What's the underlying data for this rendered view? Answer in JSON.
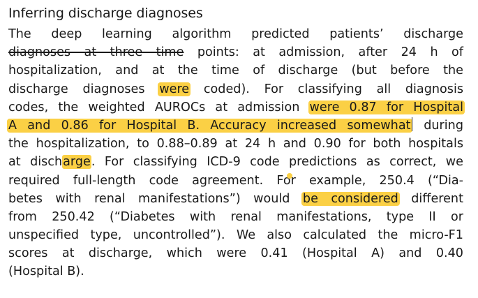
{
  "document": {
    "heading": "Inferring discharge diagnoses",
    "colors": {
      "highlight": "#fbd045",
      "text": "#1a1a1a"
    },
    "lines": [
      {
        "parts": [
          {
            "t": "The deep learning algorithm predicted patients’ discharge"
          }
        ]
      },
      {
        "parts": [
          {
            "t": "diagnoses at three time",
            "strike": true
          },
          {
            "t": " points: at admission, after 24 h of"
          }
        ]
      },
      {
        "parts": [
          {
            "t": "hospitalization, and at the time of discharge (but before the"
          }
        ]
      },
      {
        "parts": [
          {
            "t": "discharge diagnoses "
          },
          {
            "t": "were",
            "hl": true
          },
          {
            "t": " coded). For classifying all diagnosis"
          }
        ]
      },
      {
        "parts": [
          {
            "t": "codes, the weighted AUROCs at admission "
          },
          {
            "t": "were 0.87 for Hospital",
            "hl": true
          }
        ]
      },
      {
        "parts": [
          {
            "t": "A and 0.86 for Hospital B. Accuracy increased somewhat",
            "hl": true
          },
          {
            "t": "",
            "cursor": true
          },
          {
            "t": " during"
          }
        ]
      },
      {
        "parts": [
          {
            "t": "the hospitalization, to 0.88–0.89 at 24 h and 0.90 for both hospitals"
          }
        ]
      },
      {
        "parts": [
          {
            "t": "at disch"
          },
          {
            "t": "arge",
            "hlf": true
          },
          {
            "t": ". For classifying ICD-9 code predictions as correct, we"
          }
        ]
      },
      {
        "parts": [
          {
            "t": "required full-length code agreement. Fo"
          },
          {
            "t": "",
            "dot": true
          },
          {
            "t": "r example, 250.4 (“Dia-"
          }
        ]
      },
      {
        "parts": [
          {
            "t": "betes with renal manifestations”) would "
          },
          {
            "t": "be considered",
            "hl": true
          },
          {
            "t": " different"
          }
        ]
      },
      {
        "parts": [
          {
            "t": "from 250.42 (“Diabetes with renal manifestations, type II or"
          }
        ]
      },
      {
        "parts": [
          {
            "t": "unspecified type, uncontrolled”). We also calculated the micro-F1"
          }
        ]
      },
      {
        "parts": [
          {
            "t": "scores at discharge, which were 0.41 (Hospital A) and 0.40"
          }
        ]
      },
      {
        "parts": [
          {
            "t": "(Hospital B)."
          }
        ],
        "last": true
      }
    ]
  }
}
